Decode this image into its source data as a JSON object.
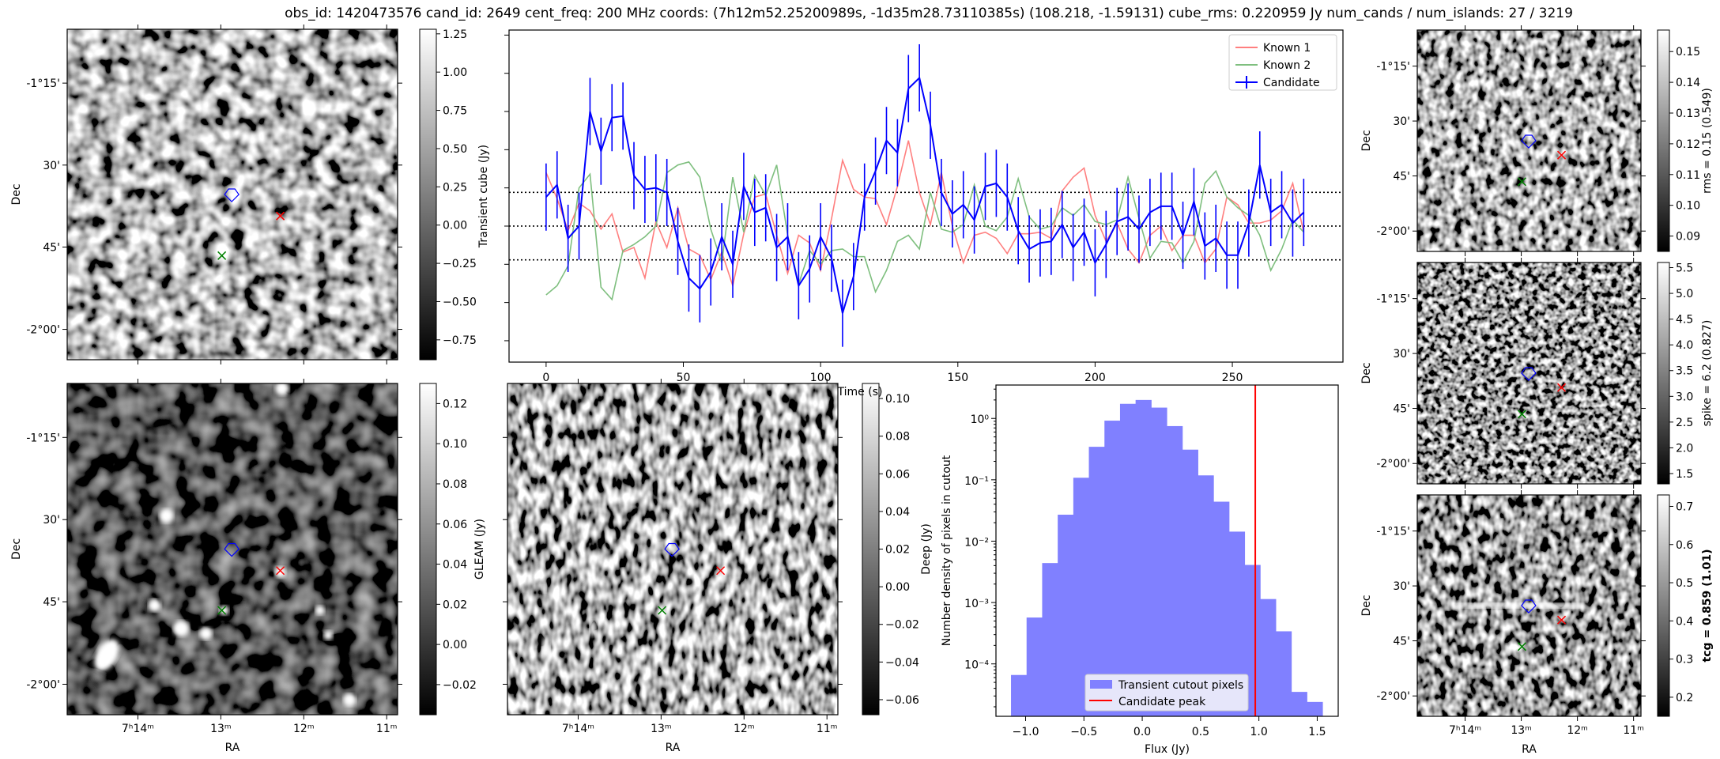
{
  "title": "obs_id: 1420473576 cand_id: 2649 cent_freq: 200 MHz coords: (7h12m52.25200989s, -1d35m28.73110385s) (108.218, -1.59131) cube_rms: 0.220959 Jy num_cands / num_islands: 27 / 3219",
  "axes": {
    "dec_label": "Dec",
    "ra_label": "RA",
    "dec_ticks": [
      "-1°15'",
      "30'",
      "45'",
      "-2°00'"
    ],
    "ra_ticks": [
      "7ʰ14ᵐ",
      "13ᵐ",
      "12ᵐ",
      "11ᵐ"
    ]
  },
  "panels": {
    "transient": {
      "label": "",
      "range": [
        -0.88,
        1.28
      ],
      "ticks": [
        1.25,
        1.0,
        0.75,
        0.5,
        0.25,
        0,
        -0.25,
        -0.5,
        -0.75
      ],
      "tick_labels": [
        "1.25",
        "1.00",
        "0.75",
        "0.50",
        "0.25",
        "0.00",
        "−0.25",
        "−0.50",
        "−0.75"
      ]
    },
    "gleam": {
      "label": "GLEAM (Jy)",
      "range": [
        -0.035,
        0.13
      ],
      "ticks": [
        0.12,
        0.1,
        0.08,
        0.06,
        0.04,
        0.02,
        0,
        -0.02
      ],
      "tick_labels": [
        "0.12",
        "0.10",
        "0.08",
        "0.06",
        "0.04",
        "0.02",
        "0.00",
        "−0.02"
      ]
    },
    "deep": {
      "label": "Deep (Jy)",
      "range": [
        -0.068,
        0.108
      ],
      "ticks": [
        0.1,
        0.08,
        0.06,
        0.04,
        0.02,
        0,
        -0.02,
        -0.04,
        -0.06
      ],
      "tick_labels": [
        "0.10",
        "0.08",
        "0.06",
        "0.04",
        "0.02",
        "0.00",
        "−0.02",
        "−0.04",
        "−0.06"
      ]
    },
    "rms": {
      "label": "rms = 0.15 (0.549)",
      "range": [
        0.085,
        0.157
      ],
      "ticks": [
        0.15,
        0.14,
        0.13,
        0.12,
        0.11,
        0.1,
        0.09
      ],
      "tick_labels": [
        "0.15",
        "0.14",
        "0.13",
        "0.12",
        "0.11",
        "0.10",
        "0.09"
      ]
    },
    "spike": {
      "label": "spike = 6.2 (0.827)",
      "range": [
        1.3,
        5.6
      ],
      "ticks": [
        5.5,
        5.0,
        4.5,
        4.0,
        3.5,
        3.0,
        2.5,
        2.0,
        1.5
      ],
      "tick_labels": [
        "5.5",
        "5.0",
        "4.5",
        "4.0",
        "3.5",
        "3.0",
        "2.5",
        "2.0",
        "1.5"
      ]
    },
    "tcg": {
      "label": "tcg = 0.859 (1.01)",
      "range": [
        0.15,
        0.73
      ],
      "ticks": [
        0.7,
        0.6,
        0.5,
        0.4,
        0.3,
        0.2
      ],
      "tick_labels": [
        "0.7",
        "0.6",
        "0.5",
        "0.4",
        "0.3",
        "0.2"
      ]
    }
  },
  "colors": {
    "candidate": "#0000ff",
    "known1": "#ff7f7f",
    "known2": "#7fbf7f",
    "hist": "#8080ff",
    "peak": "#ff0000"
  },
  "chart_data": [
    {
      "type": "line",
      "title": "",
      "xlabel": "Time (s)",
      "ylabel": "Transient cube (Jy)",
      "xlim": [
        -13.5,
        290.3
      ],
      "ylim": [
        -0.89,
        1.283
      ],
      "xticks": [
        0,
        50,
        100,
        150,
        200,
        250
      ],
      "xtick_labels": [
        "0",
        "50",
        "100",
        "150",
        "200",
        "250"
      ],
      "yticks": [
        -0.75,
        -0.5,
        -0.25,
        0,
        0.25,
        0.5,
        0.75,
        1.0,
        1.25
      ],
      "hlines": [
        0.221,
        0,
        -0.221
      ],
      "legend": {
        "placement": "top-right",
        "entries": [
          "Known 1",
          "Known 2",
          "Candidate"
        ]
      },
      "x_start": 0,
      "x_step": 4,
      "series": [
        {
          "name": "Known 1",
          "values": [
            0.35,
            0.18,
            -0.03,
            0.15,
            0.1,
            -0.02,
            0.08,
            -0.17,
            -0.14,
            -0.34,
            0.03,
            -0.14,
            0.12,
            -0.15,
            -0.19,
            -0.35,
            -0.17,
            -0.39,
            -0.05,
            0.19,
            0.21,
            -0.06,
            -0.31,
            -0.06,
            -0.11,
            -0.29,
            0.05,
            0.43,
            0.24,
            0.19,
            0.18,
            0.01,
            0.26,
            0.56,
            0.22,
            0.01,
            0.35,
            0.0,
            -0.24,
            -0.06,
            -0.04,
            -0.08,
            -0.18,
            -0.05,
            -0.05,
            -0.04,
            -0.08,
            0.23,
            0.32,
            0.38,
            0.07,
            -0.1,
            0.02,
            -0.15,
            -0.24,
            -0.06,
            0.0,
            -0.16,
            -0.06,
            -0.06,
            -0.24,
            -0.15,
            0.19,
            0.14,
            0.02,
            0.02,
            0.04,
            0.1,
            0.28,
            -0.04
          ]
        },
        {
          "name": "Known 2",
          "values": [
            -0.45,
            -0.39,
            -0.26,
            0.25,
            0.34,
            -0.4,
            -0.48,
            -0.16,
            -0.12,
            -0.07,
            0.0,
            0.35,
            0.4,
            0.42,
            0.32,
            -0.02,
            -0.24,
            0.32,
            -0.04,
            0.33,
            0.2,
            0.4,
            -0.06,
            -0.38,
            -0.16,
            -0.25,
            -0.16,
            -0.15,
            -0.2,
            -0.2,
            -0.43,
            -0.29,
            -0.1,
            -0.06,
            -0.15,
            0.22,
            -0.02,
            -0.04,
            0.01,
            0.27,
            0.0,
            -0.03,
            0.06,
            0.31,
            0.06,
            -0.02,
            0.0,
            0.12,
            0.07,
            0.14,
            0.03,
            0.01,
            0.04,
            0.32,
            0.05,
            -0.21,
            -0.1,
            -0.11,
            -0.24,
            -0.1,
            0.28,
            0.36,
            0.19,
            0.12,
            0.07,
            -0.06,
            -0.29,
            -0.15,
            0.04,
            -0.04
          ]
        },
        {
          "name": "Candidate",
          "yerr": 0.22,
          "values": [
            0.19,
            0.27,
            -0.08,
            0.0,
            0.75,
            0.49,
            0.71,
            0.72,
            0.33,
            0.24,
            0.25,
            0.22,
            -0.1,
            -0.34,
            -0.41,
            -0.3,
            -0.07,
            -0.25,
            0.26,
            0.09,
            0.12,
            -0.14,
            -0.07,
            -0.39,
            -0.28,
            -0.07,
            -0.21,
            -0.57,
            -0.33,
            0.19,
            0.36,
            0.56,
            0.48,
            0.9,
            0.97,
            0.66,
            0.22,
            0.08,
            0.14,
            0.04,
            0.26,
            0.28,
            0.19,
            -0.03,
            -0.15,
            -0.11,
            -0.1,
            0.01,
            -0.14,
            -0.04,
            -0.24,
            -0.12,
            0.03,
            0.06,
            -0.02,
            0.09,
            0.13,
            0.13,
            -0.06,
            0.16,
            -0.13,
            -0.08,
            -0.19,
            -0.19,
            0.02,
            0.4,
            0.09,
            0.14,
            0.02,
            0.09
          ]
        }
      ]
    },
    {
      "type": "bar",
      "title": "",
      "xlabel": "Flux (Jy)",
      "ylabel": "Number density of pixels in cutout",
      "yscale": "log",
      "xlim": [
        -1.254,
        1.68
      ],
      "ylim": [
        1.4e-05,
        3.5
      ],
      "xticks": [
        -1.0,
        -0.5,
        0.0,
        0.5,
        1.0,
        1.5
      ],
      "xtick_labels": [
        "−1.0",
        "−0.5",
        "0.0",
        "0.5",
        "1.0",
        "1.5"
      ],
      "yticks": [
        1,
        0.1,
        0.01,
        0.001,
        0.0001
      ],
      "ytick_labels": [
        "10⁰",
        "10⁻¹",
        "10⁻²",
        "10⁻³",
        "10⁻⁴"
      ],
      "bin_start": -1.125,
      "bin_width": 0.1335,
      "values": [
        6.6e-05,
        0.00057,
        0.0044,
        0.027,
        0.108,
        0.345,
        0.92,
        1.73,
        2.0,
        1.5,
        0.75,
        0.31,
        0.118,
        0.044,
        0.0143,
        0.0041,
        0.00114,
        0.00034,
        3.5e-05,
        2.4e-05
      ],
      "candidate_peak": 0.969,
      "legend": {
        "placement": "lower-center",
        "entries": [
          "Transient cutout pixels",
          "Candidate peak"
        ]
      }
    }
  ]
}
